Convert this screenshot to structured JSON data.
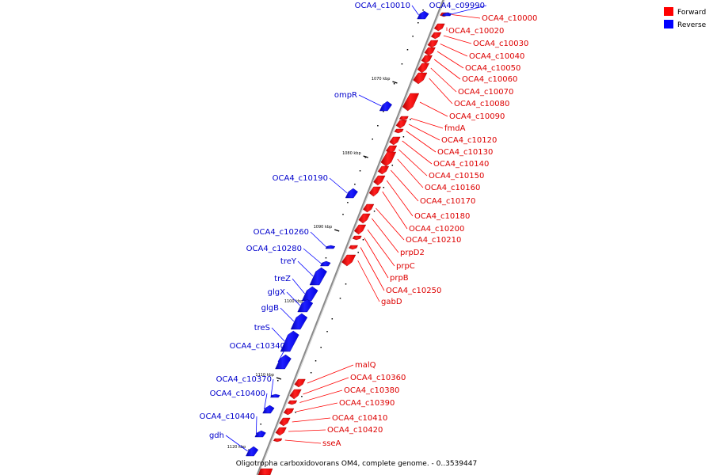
{
  "caption": "Oligotropha carboxidovorans OM4, complete genome. - 0..3539447",
  "legend": [
    {
      "label": "Forward",
      "color": "#ff0000"
    },
    {
      "label": "Reverse",
      "color": "#0000ff"
    }
  ],
  "colors": {
    "forward": "#ff0000",
    "reverse": "#0000ff",
    "axis": "#888888"
  },
  "ticks": [
    "1070 kbp",
    "1080 kbp",
    "1090 kbp",
    "1100 kbp",
    "1110 kbp",
    "1120 kbp"
  ],
  "forward_genes": [
    "OCA4_c10000",
    "OCA4_c10020",
    "OCA4_c10030",
    "OCA4_c10040",
    "OCA4_c10050",
    "OCA4_c10060",
    "OCA4_c10070",
    "OCA4_c10080",
    "OCA4_c10090",
    "fmdA",
    "OCA4_c10120",
    "OCA4_c10130",
    "OCA4_c10140",
    "OCA4_c10150",
    "OCA4_c10160",
    "OCA4_c10170",
    "OCA4_c10180",
    "OCA4_c10200",
    "OCA4_c10210",
    "prpD2",
    "prpC",
    "prpB",
    "OCA4_c10250",
    "gabD",
    "malQ",
    "OCA4_c10360",
    "OCA4_c10380",
    "OCA4_c10390",
    "OCA4_c10410",
    "OCA4_c10420",
    "sseA"
  ],
  "reverse_genes": [
    "OCA4_c09990",
    "OCA4_c10010",
    "ompR",
    "OCA4_c10190",
    "OCA4_c10260",
    "OCA4_c10280",
    "treY",
    "treZ",
    "glgX",
    "glgB",
    "treS",
    "OCA4_c10340",
    "OCA4_c10370",
    "OCA4_c10400",
    "OCA4_c10440",
    "gdh"
  ]
}
